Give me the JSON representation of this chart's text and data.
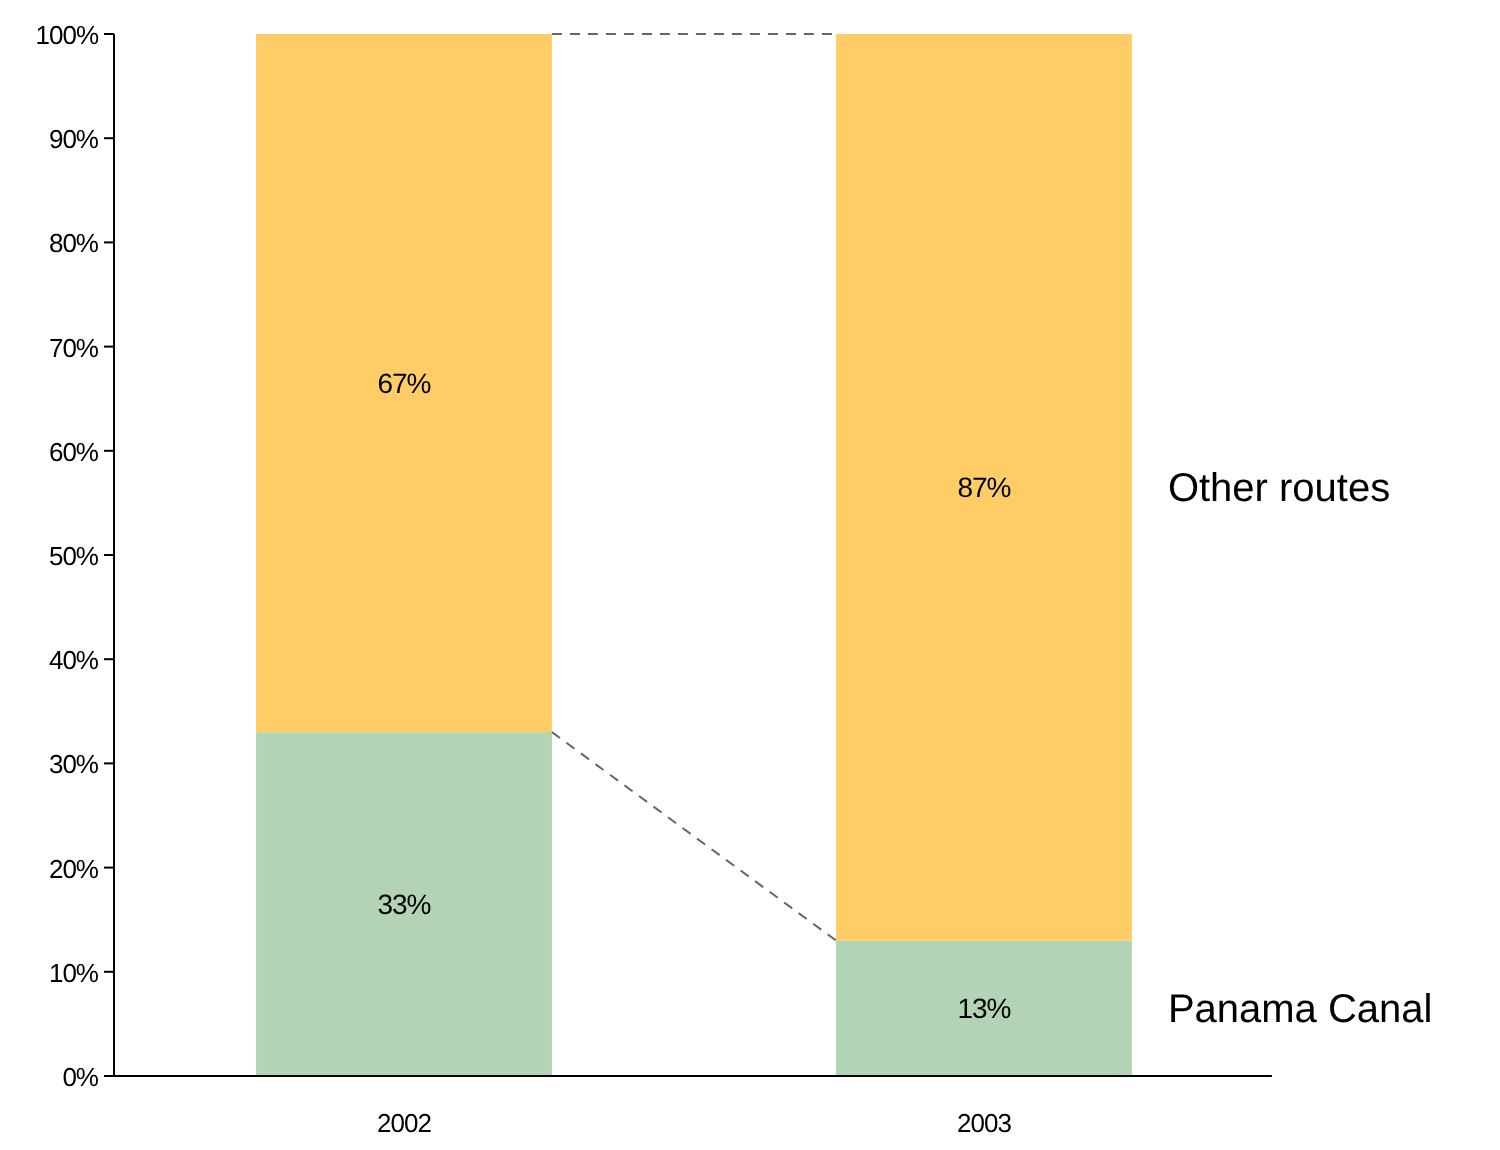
{
  "chart_data": {
    "type": "bar",
    "stacked": true,
    "categories": [
      "2002",
      "2003"
    ],
    "series": [
      {
        "name": "Panama Canal",
        "color": "#b2d3b4",
        "values": [
          33,
          13
        ],
        "value_labels": [
          "33%",
          "13%"
        ]
      },
      {
        "name": "Other routes",
        "color": "#ffcc66",
        "values": [
          67,
          87
        ],
        "value_labels": [
          "67%",
          "87%"
        ]
      }
    ],
    "ylim": [
      0,
      100
    ],
    "yticks": [
      {
        "value": 0,
        "label": "0%"
      },
      {
        "value": 10,
        "label": "10%"
      },
      {
        "value": 20,
        "label": "20%"
      },
      {
        "value": 30,
        "label": "30%"
      },
      {
        "value": 40,
        "label": "40%"
      },
      {
        "value": 50,
        "label": "50%"
      },
      {
        "value": 60,
        "label": "60%"
      },
      {
        "value": 70,
        "label": "70%"
      },
      {
        "value": 80,
        "label": "80%"
      },
      {
        "value": 90,
        "label": "90%"
      },
      {
        "value": 100,
        "label": "100%"
      }
    ],
    "grid": false
  }
}
